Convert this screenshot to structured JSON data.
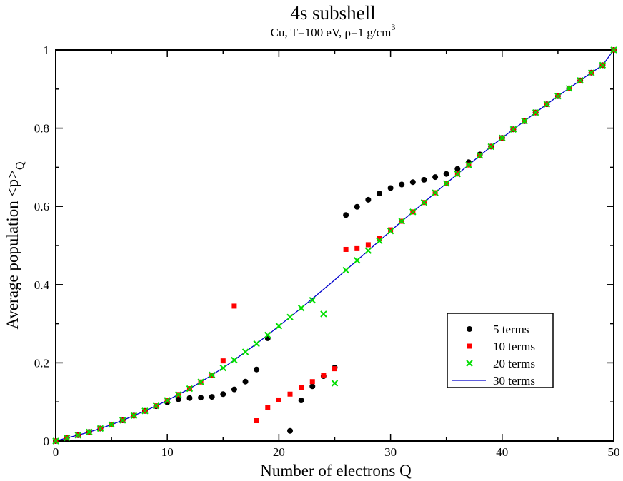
{
  "chart_data": {
    "type": "scatter",
    "title": "4s subshell",
    "subtitle": {
      "text": "Cu, T=100 eV, ρ=1 g/cm",
      "superscript": "3"
    },
    "xlabel": "Number of electrons Q",
    "ylabel": {
      "text": "Average population <p>",
      "subscript": "Q"
    },
    "xlim": [
      0,
      50
    ],
    "ylim": [
      0,
      1
    ],
    "xticks": [
      0,
      10,
      20,
      30,
      40,
      50
    ],
    "yticks": [
      0,
      0.2,
      0.4,
      0.6,
      0.8,
      1
    ],
    "ytick_labels": [
      "0",
      "0.2",
      "0.4",
      "0.6",
      "0.8",
      "1"
    ],
    "grid": false,
    "legend_position": "lower-right",
    "series": [
      {
        "name": "5 terms",
        "marker": "circle",
        "color": "#000000",
        "points": [
          [
            0,
            0
          ],
          [
            1,
            0.008
          ],
          [
            2,
            0.015
          ],
          [
            3,
            0.023
          ],
          [
            4,
            0.032
          ],
          [
            5,
            0.042
          ],
          [
            6,
            0.053
          ],
          [
            7,
            0.065
          ],
          [
            8,
            0.077
          ],
          [
            9,
            0.089
          ],
          [
            10,
            0.099
          ],
          [
            11,
            0.107
          ],
          [
            12,
            0.11
          ],
          [
            13,
            0.111
          ],
          [
            14,
            0.113
          ],
          [
            15,
            0.12
          ],
          [
            16,
            0.132
          ],
          [
            17,
            0.152
          ],
          [
            18,
            0.183
          ],
          [
            19,
            0.263
          ],
          [
            21,
            0.026
          ],
          [
            22,
            0.104
          ],
          [
            23,
            0.14
          ],
          [
            24,
            0.166
          ],
          [
            25,
            0.188
          ],
          [
            26,
            0.578
          ],
          [
            27,
            0.599
          ],
          [
            28,
            0.617
          ],
          [
            29,
            0.633
          ],
          [
            30,
            0.647
          ],
          [
            31,
            0.656
          ],
          [
            32,
            0.662
          ],
          [
            33,
            0.668
          ],
          [
            34,
            0.675
          ],
          [
            35,
            0.683
          ],
          [
            36,
            0.696
          ],
          [
            37,
            0.713
          ],
          [
            38,
            0.733
          ],
          [
            39,
            0.753
          ],
          [
            40,
            0.775
          ],
          [
            41,
            0.797
          ],
          [
            42,
            0.818
          ],
          [
            43,
            0.84
          ],
          [
            44,
            0.861
          ],
          [
            45,
            0.882
          ],
          [
            46,
            0.902
          ],
          [
            47,
            0.922
          ],
          [
            48,
            0.942
          ],
          [
            49,
            0.961
          ],
          [
            50,
            1.0
          ]
        ]
      },
      {
        "name": "10 terms",
        "marker": "square",
        "color": "#ff0000",
        "points": [
          [
            0,
            0
          ],
          [
            1,
            0.008
          ],
          [
            2,
            0.015
          ],
          [
            3,
            0.023
          ],
          [
            4,
            0.032
          ],
          [
            5,
            0.042
          ],
          [
            6,
            0.053
          ],
          [
            7,
            0.065
          ],
          [
            8,
            0.077
          ],
          [
            9,
            0.09
          ],
          [
            10,
            0.104
          ],
          [
            11,
            0.119
          ],
          [
            12,
            0.134
          ],
          [
            13,
            0.151
          ],
          [
            14,
            0.168
          ],
          [
            15,
            0.205
          ],
          [
            16,
            0.345
          ],
          [
            18,
            0.052
          ],
          [
            19,
            0.085
          ],
          [
            20,
            0.105
          ],
          [
            21,
            0.12
          ],
          [
            22,
            0.137
          ],
          [
            23,
            0.152
          ],
          [
            24,
            0.168
          ],
          [
            25,
            0.185
          ],
          [
            26,
            0.49
          ],
          [
            27,
            0.492
          ],
          [
            28,
            0.502
          ],
          [
            29,
            0.519
          ],
          [
            30,
            0.54
          ],
          [
            31,
            0.562
          ],
          [
            32,
            0.586
          ],
          [
            33,
            0.61
          ],
          [
            34,
            0.635
          ],
          [
            35,
            0.659
          ],
          [
            36,
            0.683
          ],
          [
            37,
            0.706
          ],
          [
            38,
            0.73
          ],
          [
            39,
            0.753
          ],
          [
            40,
            0.775
          ],
          [
            41,
            0.797
          ],
          [
            42,
            0.818
          ],
          [
            43,
            0.84
          ],
          [
            44,
            0.861
          ],
          [
            45,
            0.882
          ],
          [
            46,
            0.902
          ],
          [
            47,
            0.922
          ],
          [
            48,
            0.942
          ],
          [
            49,
            0.961
          ],
          [
            50,
            1.0
          ]
        ]
      },
      {
        "name": "20 terms",
        "marker": "x",
        "color": "#00dd00",
        "points": [
          [
            0,
            0
          ],
          [
            1,
            0.008
          ],
          [
            2,
            0.015
          ],
          [
            3,
            0.023
          ],
          [
            4,
            0.032
          ],
          [
            5,
            0.042
          ],
          [
            6,
            0.053
          ],
          [
            7,
            0.065
          ],
          [
            8,
            0.077
          ],
          [
            9,
            0.09
          ],
          [
            10,
            0.104
          ],
          [
            11,
            0.119
          ],
          [
            12,
            0.134
          ],
          [
            13,
            0.151
          ],
          [
            14,
            0.169
          ],
          [
            15,
            0.187
          ],
          [
            16,
            0.207
          ],
          [
            17,
            0.228
          ],
          [
            18,
            0.249
          ],
          [
            19,
            0.271
          ],
          [
            20,
            0.294
          ],
          [
            21,
            0.317
          ],
          [
            22,
            0.34
          ],
          [
            23,
            0.36
          ],
          [
            24,
            0.325
          ],
          [
            25,
            0.148
          ],
          [
            26,
            0.437
          ],
          [
            27,
            0.462
          ],
          [
            28,
            0.487
          ],
          [
            29,
            0.512
          ],
          [
            30,
            0.537
          ],
          [
            31,
            0.562
          ],
          [
            32,
            0.586
          ],
          [
            33,
            0.61
          ],
          [
            34,
            0.635
          ],
          [
            35,
            0.659
          ],
          [
            36,
            0.683
          ],
          [
            37,
            0.706
          ],
          [
            38,
            0.73
          ],
          [
            39,
            0.753
          ],
          [
            40,
            0.775
          ],
          [
            41,
            0.797
          ],
          [
            42,
            0.818
          ],
          [
            43,
            0.84
          ],
          [
            44,
            0.861
          ],
          [
            45,
            0.882
          ],
          [
            46,
            0.902
          ],
          [
            47,
            0.922
          ],
          [
            48,
            0.942
          ],
          [
            49,
            0.961
          ],
          [
            50,
            1.0
          ]
        ]
      },
      {
        "name": "30 terms",
        "marker": "line",
        "color": "#0000cc",
        "points": [
          [
            0,
            0
          ],
          [
            1,
            0.008
          ],
          [
            2,
            0.015
          ],
          [
            3,
            0.023
          ],
          [
            4,
            0.032
          ],
          [
            5,
            0.042
          ],
          [
            6,
            0.053
          ],
          [
            7,
            0.065
          ],
          [
            8,
            0.077
          ],
          [
            9,
            0.09
          ],
          [
            10,
            0.104
          ],
          [
            11,
            0.119
          ],
          [
            12,
            0.134
          ],
          [
            13,
            0.151
          ],
          [
            14,
            0.169
          ],
          [
            15,
            0.187
          ],
          [
            16,
            0.207
          ],
          [
            17,
            0.228
          ],
          [
            18,
            0.249
          ],
          [
            19,
            0.271
          ],
          [
            20,
            0.294
          ],
          [
            21,
            0.317
          ],
          [
            22,
            0.34
          ],
          [
            23,
            0.364
          ],
          [
            24,
            0.388
          ],
          [
            25,
            0.412
          ],
          [
            26,
            0.437
          ],
          [
            27,
            0.462
          ],
          [
            28,
            0.487
          ],
          [
            29,
            0.512
          ],
          [
            30,
            0.537
          ],
          [
            31,
            0.562
          ],
          [
            32,
            0.586
          ],
          [
            33,
            0.61
          ],
          [
            34,
            0.635
          ],
          [
            35,
            0.659
          ],
          [
            36,
            0.683
          ],
          [
            37,
            0.706
          ],
          [
            38,
            0.73
          ],
          [
            39,
            0.753
          ],
          [
            40,
            0.775
          ],
          [
            41,
            0.797
          ],
          [
            42,
            0.818
          ],
          [
            43,
            0.84
          ],
          [
            44,
            0.861
          ],
          [
            45,
            0.882
          ],
          [
            46,
            0.902
          ],
          [
            47,
            0.922
          ],
          [
            48,
            0.942
          ],
          [
            49,
            0.961
          ],
          [
            50,
            1.0
          ]
        ]
      }
    ]
  }
}
